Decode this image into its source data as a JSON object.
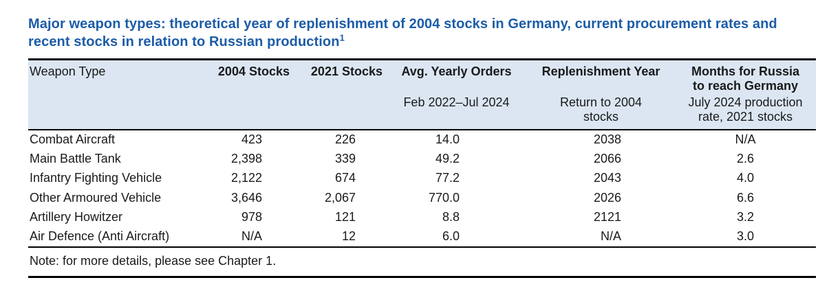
{
  "colors": {
    "title_blue": "#1c5ca8",
    "header_bg": "#dbe6f2",
    "text_color": "#1a1a1a",
    "border_color": "#000000"
  },
  "title": {
    "text": "Major weapon types: theoretical year of replenishment of 2004 stocks in Germany, current procurement rates and recent stocks in relation to Russian production",
    "footnote_marker": "1"
  },
  "table": {
    "columns": [
      {
        "label": "Weapon Type",
        "sublabel": ""
      },
      {
        "label": "2004 Stocks",
        "sublabel": ""
      },
      {
        "label": "2021 Stocks",
        "sublabel": ""
      },
      {
        "label": "Avg. Yearly Orders",
        "sublabel": "Feb 2022–Jul 2024"
      },
      {
        "label": "Replenishment Year",
        "sublabel": "Return to 2004 stocks"
      },
      {
        "label": "Months for Russia to reach Germany",
        "sublabel": "July 2024 production rate, 2021 stocks"
      }
    ],
    "rows": [
      {
        "weapon_type": "Combat Aircraft",
        "stocks_2004": "423",
        "stocks_2021": "226",
        "avg_yearly_orders": "14.0",
        "replenishment_year": "2038",
        "months_russia": "N/A"
      },
      {
        "weapon_type": "Main Battle Tank",
        "stocks_2004": "2,398",
        "stocks_2021": "339",
        "avg_yearly_orders": "49.2",
        "replenishment_year": "2066",
        "months_russia": "2.6"
      },
      {
        "weapon_type": "Infantry Fighting Vehicle",
        "stocks_2004": "2,122",
        "stocks_2021": "674",
        "avg_yearly_orders": "77.2",
        "replenishment_year": "2043",
        "months_russia": "4.0"
      },
      {
        "weapon_type": "Other Armoured Vehicle",
        "stocks_2004": "3,646",
        "stocks_2021": "2,067",
        "avg_yearly_orders": "770.0",
        "replenishment_year": "2026",
        "months_russia": "6.6"
      },
      {
        "weapon_type": "Artillery Howitzer",
        "stocks_2004": "978",
        "stocks_2021": "121",
        "avg_yearly_orders": "8.8",
        "replenishment_year": "2121",
        "months_russia": "3.2"
      },
      {
        "weapon_type": "Air Defence (Anti Aircraft)",
        "stocks_2004": "N/A",
        "stocks_2021": "12",
        "avg_yearly_orders": "6.0",
        "replenishment_year": "N/A",
        "months_russia": "3.0"
      }
    ],
    "note": "Note: for more details, please see Chapter 1."
  }
}
